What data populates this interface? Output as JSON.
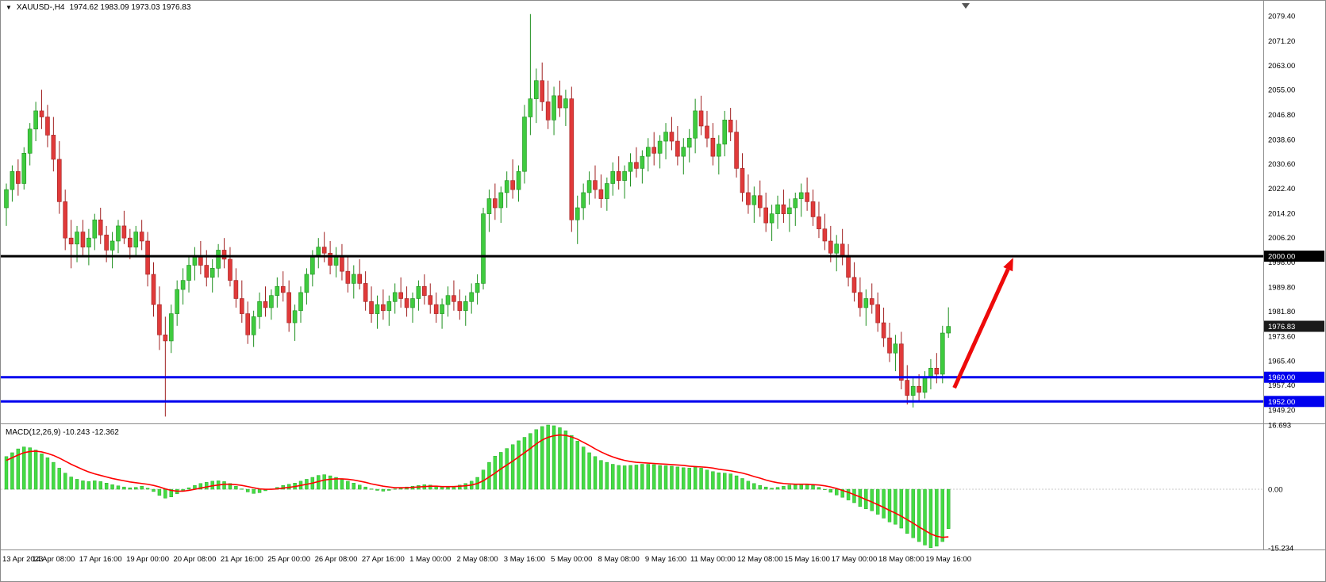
{
  "window": {
    "dropdown_icon": "▼",
    "symbol_label": "XAUUSD-,H4",
    "ohlc_label": "1974.62 1983.09 1973.03 1976.83"
  },
  "colors": {
    "bull": "#3FCB3F",
    "bull_border": "#1E8F1E",
    "bear": "#E03A3A",
    "bear_border": "#A02020",
    "level_blue": "#0000EE",
    "level_black": "#000000",
    "current_tag": "#1a1a1a",
    "arrow": "#EE0A0A",
    "macd_hist": "#44DB44",
    "macd_hist_border": "#18A018",
    "macd_signal": "#FF0000",
    "axis_text": "#000000",
    "tag_text": "#FFFFFF",
    "frame": "#8a8a8a"
  },
  "chart_data": {
    "type": "candlestick",
    "symbol": "XAUUSD-",
    "timeframe": "H4",
    "ohlc_display": {
      "open": "1974.62",
      "high": "1983.09",
      "low": "1973.03",
      "close": "1976.83"
    },
    "price_axis_ticks": [
      "2079.40",
      "2071.20",
      "2063.00",
      "2055.00",
      "2046.80",
      "2038.60",
      "2030.60",
      "2022.40",
      "2014.20",
      "2006.20",
      "1998.00",
      "1989.80",
      "1981.80",
      "1973.60",
      "1965.40",
      "1957.40",
      "1949.20"
    ],
    "price_axis_range": [
      1945.0,
      2083.6
    ],
    "label_every": 8,
    "time_labels": [
      "13 Apr 2023",
      "14 Apr 08:00",
      "17 Apr 16:00",
      "19 Apr 00:00",
      "20 Apr 08:00",
      "21 Apr 16:00",
      "25 Apr 00:00",
      "26 Apr 08:00",
      "27 Apr 16:00",
      "1 May 00:00",
      "2 May 08:00",
      "3 May 16:00",
      "5 May 00:00",
      "8 May 08:00",
      "9 May 16:00",
      "11 May 00:00",
      "12 May 08:00",
      "15 May 16:00",
      "17 May 00:00",
      "18 May 08:00",
      "19 May 16:00"
    ],
    "levels": [
      {
        "price": 2000.0,
        "label": "2000.00",
        "color": "#000000",
        "width": 3
      },
      {
        "price": 1960.0,
        "label": "1960.00",
        "color": "#0000EE",
        "width": 3
      },
      {
        "price": 1952.0,
        "label": "1952.00",
        "color": "#0000EE",
        "width": 3
      }
    ],
    "current_price": {
      "value": 1976.83,
      "label": "1976.83"
    },
    "arrow": {
      "from_index": 161,
      "from_price": 1956.5,
      "to_index": 171,
      "to_price": 1999.5
    },
    "candles": [
      [
        2016,
        2024,
        2010,
        2022
      ],
      [
        2022,
        2030,
        2018,
        2028
      ],
      [
        2028,
        2032,
        2020,
        2024
      ],
      [
        2024,
        2036,
        2022,
        2034
      ],
      [
        2034,
        2044,
        2030,
        2042
      ],
      [
        2042,
        2051,
        2038,
        2048
      ],
      [
        2048,
        2055,
        2042,
        2046
      ],
      [
        2046,
        2050,
        2036,
        2040
      ],
      [
        2040,
        2046,
        2028,
        2032
      ],
      [
        2032,
        2038,
        2014,
        2018
      ],
      [
        2018,
        2022,
        2002,
        2006
      ],
      [
        2006,
        2012,
        1996,
        2004
      ],
      [
        2004,
        2010,
        1998,
        2008
      ],
      [
        2008,
        2012,
        2000,
        2003
      ],
      [
        2003,
        2009,
        1997,
        2006
      ],
      [
        2006,
        2014,
        2002,
        2012
      ],
      [
        2012,
        2016,
        2004,
        2007
      ],
      [
        2007,
        2010,
        1998,
        2002
      ],
      [
        2002,
        2008,
        1996,
        2005
      ],
      [
        2005,
        2012,
        2001,
        2010
      ],
      [
        2010,
        2015,
        2004,
        2006
      ],
      [
        2006,
        2009,
        1999,
        2003
      ],
      [
        2003,
        2010,
        2000,
        2008
      ],
      [
        2008,
        2012,
        2002,
        2005
      ],
      [
        2005,
        2008,
        1990,
        1994
      ],
      [
        1994,
        1998,
        1980,
        1984
      ],
      [
        1984,
        1990,
        1969,
        1974
      ],
      [
        1974,
        1980,
        1947,
        1972
      ],
      [
        1972,
        1984,
        1968,
        1981
      ],
      [
        1981,
        1992,
        1977,
        1989
      ],
      [
        1989,
        1996,
        1984,
        1992
      ],
      [
        1992,
        2000,
        1988,
        1997
      ],
      [
        1997,
        2003,
        1992,
        2000
      ],
      [
        2000,
        2005,
        1994,
        1997
      ],
      [
        1997,
        2002,
        1990,
        1993
      ],
      [
        1993,
        1999,
        1988,
        1996
      ],
      [
        1996,
        2004,
        1993,
        2002
      ],
      [
        2002,
        2006,
        1996,
        1999
      ],
      [
        1999,
        2003,
        1990,
        1992
      ],
      [
        1992,
        1996,
        1983,
        1986
      ],
      [
        1986,
        1992,
        1978,
        1981
      ],
      [
        1981,
        1985,
        1971,
        1974
      ],
      [
        1974,
        1982,
        1970,
        1980
      ],
      [
        1980,
        1988,
        1976,
        1985
      ],
      [
        1985,
        1990,
        1980,
        1983
      ],
      [
        1983,
        1989,
        1979,
        1987
      ],
      [
        1987,
        1993,
        1983,
        1990
      ],
      [
        1990,
        1995,
        1985,
        1988
      ],
      [
        1988,
        1992,
        1975,
        1978
      ],
      [
        1978,
        1984,
        1972,
        1982
      ],
      [
        1982,
        1990,
        1978,
        1988
      ],
      [
        1988,
        1996,
        1984,
        1994
      ],
      [
        1994,
        2002,
        1990,
        2000
      ],
      [
        2000,
        2006,
        1996,
        2003
      ],
      [
        2003,
        2008,
        1998,
        2001
      ],
      [
        2001,
        2005,
        1994,
        1997
      ],
      [
        1997,
        2003,
        1993,
        2000
      ],
      [
        2000,
        2004,
        1992,
        1995
      ],
      [
        1995,
        2000,
        1988,
        1991
      ],
      [
        1991,
        1997,
        1986,
        1994
      ],
      [
        1994,
        1999,
        1989,
        1991
      ],
      [
        1991,
        1995,
        1982,
        1985
      ],
      [
        1985,
        1990,
        1978,
        1981
      ],
      [
        1981,
        1987,
        1976,
        1984
      ],
      [
        1984,
        1989,
        1979,
        1982
      ],
      [
        1982,
        1987,
        1977,
        1985
      ],
      [
        1985,
        1991,
        1981,
        1988
      ],
      [
        1988,
        1993,
        1983,
        1986
      ],
      [
        1986,
        1990,
        1980,
        1983
      ],
      [
        1983,
        1988,
        1978,
        1986
      ],
      [
        1986,
        1992,
        1982,
        1990
      ],
      [
        1990,
        1994,
        1984,
        1987
      ],
      [
        1987,
        1991,
        1981,
        1984
      ],
      [
        1984,
        1988,
        1978,
        1981
      ],
      [
        1981,
        1986,
        1976,
        1984
      ],
      [
        1984,
        1990,
        1980,
        1987
      ],
      [
        1987,
        1992,
        1982,
        1985
      ],
      [
        1985,
        1989,
        1979,
        1982
      ],
      [
        1982,
        1987,
        1977,
        1985
      ],
      [
        1985,
        1991,
        1981,
        1988
      ],
      [
        1988,
        1994,
        1984,
        1991
      ],
      [
        1991,
        2016,
        1989,
        2014
      ],
      [
        2014,
        2022,
        2008,
        2019
      ],
      [
        2019,
        2024,
        2012,
        2016
      ],
      [
        2016,
        2023,
        2011,
        2021
      ],
      [
        2021,
        2028,
        2016,
        2025
      ],
      [
        2025,
        2032,
        2019,
        2022
      ],
      [
        2022,
        2030,
        2018,
        2028
      ],
      [
        2028,
        2050,
        2024,
        2046
      ],
      [
        2046,
        2080,
        2040,
        2052
      ],
      [
        2052,
        2062,
        2044,
        2058
      ],
      [
        2058,
        2064,
        2048,
        2051
      ],
      [
        2051,
        2058,
        2042,
        2045
      ],
      [
        2045,
        2056,
        2040,
        2053
      ],
      [
        2053,
        2058,
        2046,
        2049
      ],
      [
        2049,
        2055,
        2043,
        2052
      ],
      [
        2052,
        2056,
        2008,
        2012
      ],
      [
        2012,
        2020,
        2004,
        2016
      ],
      [
        2016,
        2024,
        2012,
        2021
      ],
      [
        2021,
        2028,
        2017,
        2025
      ],
      [
        2025,
        2030,
        2019,
        2022
      ],
      [
        2022,
        2027,
        2016,
        2019
      ],
      [
        2019,
        2026,
        2015,
        2024
      ],
      [
        2024,
        2031,
        2020,
        2028
      ],
      [
        2028,
        2033,
        2022,
        2025
      ],
      [
        2025,
        2030,
        2019,
        2028
      ],
      [
        2028,
        2034,
        2023,
        2031
      ],
      [
        2031,
        2036,
        2026,
        2029
      ],
      [
        2029,
        2035,
        2024,
        2033
      ],
      [
        2033,
        2039,
        2028,
        2036
      ],
      [
        2036,
        2041,
        2030,
        2034
      ],
      [
        2034,
        2040,
        2029,
        2038
      ],
      [
        2038,
        2044,
        2032,
        2041
      ],
      [
        2041,
        2046,
        2035,
        2038
      ],
      [
        2038,
        2043,
        2030,
        2033
      ],
      [
        2033,
        2039,
        2027,
        2036
      ],
      [
        2036,
        2042,
        2031,
        2039
      ],
      [
        2039,
        2052,
        2034,
        2048
      ],
      [
        2048,
        2053,
        2040,
        2043
      ],
      [
        2043,
        2048,
        2036,
        2039
      ],
      [
        2039,
        2044,
        2030,
        2033
      ],
      [
        2033,
        2040,
        2027,
        2037
      ],
      [
        2037,
        2048,
        2033,
        2045
      ],
      [
        2045,
        2049,
        2038,
        2041
      ],
      [
        2041,
        2045,
        2026,
        2029
      ],
      [
        2029,
        2034,
        2018,
        2021
      ],
      [
        2021,
        2027,
        2014,
        2017
      ],
      [
        2017,
        2023,
        2011,
        2020
      ],
      [
        2020,
        2025,
        2013,
        2016
      ],
      [
        2016,
        2021,
        2008,
        2011
      ],
      [
        2011,
        2017,
        2005,
        2014
      ],
      [
        2014,
        2020,
        2009,
        2017
      ],
      [
        2017,
        2022,
        2011,
        2014
      ],
      [
        2014,
        2019,
        2008,
        2016
      ],
      [
        2016,
        2021,
        2010,
        2019
      ],
      [
        2019,
        2024,
        2013,
        2021
      ],
      [
        2021,
        2026,
        2015,
        2018
      ],
      [
        2018,
        2022,
        2010,
        2013
      ],
      [
        2013,
        2018,
        2006,
        2009
      ],
      [
        2009,
        2014,
        2002,
        2005
      ],
      [
        2005,
        2010,
        1998,
        2001
      ],
      [
        2001,
        2007,
        1995,
        2004
      ],
      [
        2004,
        2009,
        1997,
        2000
      ],
      [
        2000,
        2004,
        1990,
        1993
      ],
      [
        1993,
        1998,
        1985,
        1988
      ],
      [
        1988,
        1993,
        1980,
        1983
      ],
      [
        1983,
        1989,
        1977,
        1986
      ],
      [
        1986,
        1991,
        1981,
        1984
      ],
      [
        1984,
        1988,
        1975,
        1978
      ],
      [
        1978,
        1983,
        1970,
        1973
      ],
      [
        1973,
        1978,
        1965,
        1968
      ],
      [
        1968,
        1974,
        1962,
        1971
      ],
      [
        1971,
        1975,
        1956,
        1959
      ],
      [
        1959,
        1964,
        1951,
        1954
      ],
      [
        1954,
        1960,
        1950,
        1957
      ],
      [
        1957,
        1961,
        1952,
        1955
      ],
      [
        1955,
        1962,
        1953,
        1960
      ],
      [
        1960,
        1966,
        1956,
        1963
      ],
      [
        1963,
        1968,
        1958,
        1961
      ],
      [
        1961,
        1977,
        1958,
        1974.6
      ],
      [
        1974.6,
        1983.1,
        1973,
        1976.8
      ]
    ],
    "macd": {
      "label": "MACD(12,26,9) -10.243 -12.362",
      "main_value": -10.243,
      "signal_value": -12.362,
      "axis_ticks": [
        "16.693",
        "0.00",
        "-15.234"
      ],
      "range": [
        -15.234,
        16.693
      ],
      "histogram": [
        8.5,
        9.5,
        10.5,
        11,
        10.8,
        10.2,
        9.2,
        8.2,
        7,
        5.5,
        4.2,
        3.2,
        2.6,
        2.2,
        2,
        2.2,
        2,
        1.6,
        1.2,
        0.9,
        0.6,
        0.4,
        0.5,
        0.8,
        0.3,
        -0.6,
        -1.6,
        -2.3,
        -2,
        -1.2,
        -0.4,
        0.4,
        1,
        1.5,
        1.8,
        2.1,
        2.2,
        2,
        1.5,
        0.8,
        0.1,
        -0.7,
        -1.1,
        -0.9,
        -0.4,
        0.1,
        0.5,
        1,
        1.3,
        1.6,
        2.1,
        2.6,
        3.1,
        3.6,
        3.8,
        3.5,
        3.1,
        2.6,
        2.1,
        1.6,
        1.1,
        0.6,
        0.1,
        -0.3,
        -0.5,
        -0.3,
        0.1,
        0.3,
        0.6,
        0.8,
        1,
        1.2,
        1.1,
        0.9,
        0.6,
        0.5,
        0.8,
        1.1,
        1.5,
        2.1,
        3.1,
        5,
        7,
        8.6,
        9.6,
        10.6,
        11.6,
        12.6,
        13.5,
        14.5,
        15.5,
        16.3,
        16.7,
        16.5,
        16,
        15.2,
        14,
        12.5,
        11,
        9.5,
        8.5,
        7.5,
        7,
        6.5,
        6.2,
        6.1,
        6.2,
        6.3,
        6.5,
        6.5,
        6.4,
        6.2,
        6.1,
        6,
        5.8,
        5.6,
        5.5,
        5.8,
        5.5,
        5,
        4.6,
        4.3,
        4.2,
        4,
        3.5,
        2.8,
        2.1,
        1.5,
        1,
        0.6,
        0.3,
        0.5,
        0.8,
        1.1,
        1.2,
        1.3,
        1.2,
        1,
        0.5,
        0,
        -0.8,
        -1.5,
        -2.1,
        -2.8,
        -3.5,
        -4.5,
        -5.1,
        -5.6,
        -6.5,
        -7.5,
        -8.5,
        -9.1,
        -10.1,
        -11.5,
        -12.6,
        -13.6,
        -14.5,
        -15.2,
        -14.8,
        -13.6,
        -10.243
      ],
      "signal": [
        7.5,
        8.2,
        8.9,
        9.5,
        9.8,
        9.9,
        9.7,
        9.3,
        8.8,
        8.1,
        7.3,
        6.5,
        5.8,
        5.1,
        4.5,
        4,
        3.6,
        3.2,
        2.8,
        2.5,
        2.2,
        1.9,
        1.7,
        1.5,
        1.3,
        1,
        0.6,
        0.1,
        -0.3,
        -0.5,
        -0.5,
        -0.3,
        0,
        0.3,
        0.6,
        0.9,
        1.1,
        1.3,
        1.3,
        1.2,
        1,
        0.7,
        0.4,
        0.1,
        0,
        0,
        0.1,
        0.3,
        0.5,
        0.7,
        1,
        1.3,
        1.6,
        2,
        2.4,
        2.6,
        2.7,
        2.7,
        2.6,
        2.4,
        2.1,
        1.8,
        1.4,
        1.1,
        0.8,
        0.6,
        0.4,
        0.4,
        0.4,
        0.5,
        0.6,
        0.7,
        0.8,
        0.8,
        0.7,
        0.7,
        0.7,
        0.8,
        0.9,
        1.1,
        1.5,
        2.2,
        3.2,
        4.2,
        5.3,
        6.3,
        7.3,
        8.4,
        9.5,
        10.6,
        11.8,
        12.8,
        13.5,
        13.9,
        14.1,
        14,
        13.6,
        13,
        12.2,
        11.4,
        10.5,
        9.7,
        9,
        8.4,
        7.9,
        7.5,
        7.2,
        7,
        6.9,
        6.8,
        6.7,
        6.6,
        6.5,
        6.4,
        6.3,
        6.2,
        6,
        5.9,
        5.8,
        5.7,
        5.5,
        5.2,
        5,
        4.8,
        4.5,
        4.2,
        3.8,
        3.3,
        2.9,
        2.4,
        2,
        1.7,
        1.5,
        1.4,
        1.3,
        1.3,
        1.3,
        1.2,
        1.1,
        0.9,
        0.6,
        0.2,
        -0.3,
        -0.8,
        -1.4,
        -2,
        -2.7,
        -3.3,
        -4,
        -4.7,
        -5.5,
        -6.2,
        -7,
        -7.9,
        -8.8,
        -9.8,
        -10.7,
        -11.6,
        -12.2,
        -12.5,
        -12.362
      ]
    }
  }
}
